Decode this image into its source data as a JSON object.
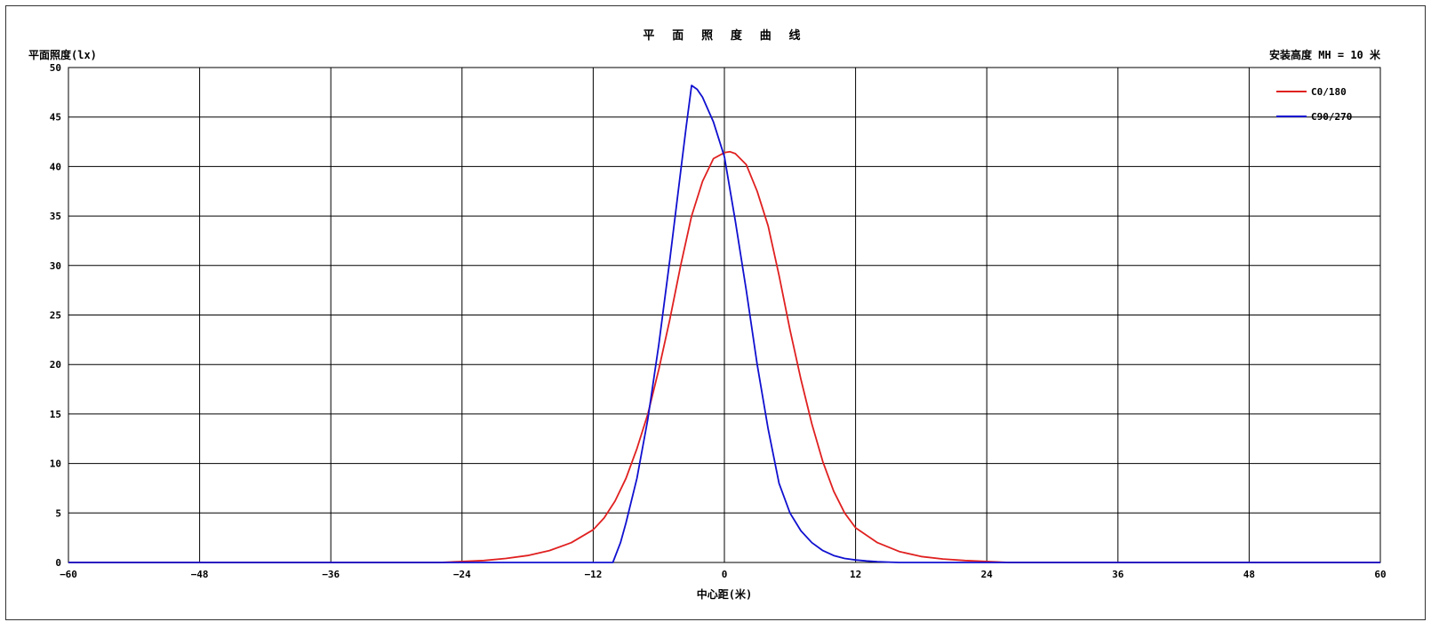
{
  "chart_data": {
    "type": "line",
    "title": "平 面 照 度 曲 线",
    "ylabel": "平面照度(lx)",
    "xlabel": "中心距(米)",
    "annotation": "安装高度 MH = 10 米",
    "xlim": [
      -60,
      60
    ],
    "ylim": [
      0,
      50
    ],
    "xticks": [
      -60,
      -48,
      -36,
      -24,
      -12,
      0,
      12,
      24,
      36,
      48,
      60
    ],
    "yticks": [
      0,
      5,
      10,
      15,
      20,
      25,
      30,
      35,
      40,
      45,
      50
    ],
    "grid": true,
    "legend_position": "top-right",
    "series": [
      {
        "name": "C0/180",
        "color": "#e02020",
        "x": [
          -60,
          -26,
          -24,
          -22,
          -20,
          -18,
          -16,
          -14,
          -12,
          -11,
          -10,
          -9,
          -8,
          -7,
          -6,
          -5,
          -4,
          -3,
          -2,
          -1,
          0,
          0.5,
          1,
          2,
          3,
          4,
          5,
          6,
          7,
          8,
          9,
          10,
          11,
          12,
          14,
          16,
          18,
          20,
          22,
          24,
          26,
          60
        ],
        "y": [
          0,
          0,
          0.1,
          0.2,
          0.4,
          0.7,
          1.2,
          2.0,
          3.3,
          4.5,
          6.2,
          8.5,
          11.5,
          15.0,
          19.5,
          24.5,
          30.0,
          35.0,
          38.5,
          40.8,
          41.4,
          41.5,
          41.3,
          40.2,
          37.5,
          34.0,
          29.0,
          23.5,
          18.5,
          14.0,
          10.2,
          7.2,
          5.0,
          3.5,
          2.0,
          1.1,
          0.6,
          0.35,
          0.2,
          0.1,
          0,
          0
        ]
      },
      {
        "name": "C90/270",
        "color": "#1010d0",
        "x": [
          -60,
          -10.2,
          -9.5,
          -9,
          -8,
          -7,
          -6,
          -5,
          -4,
          -3.5,
          -3,
          -2.5,
          -2,
          -1,
          0,
          1,
          2,
          3,
          4,
          5,
          6,
          7,
          8,
          9,
          10,
          11,
          12,
          13,
          14,
          15,
          16,
          60
        ],
        "y": [
          0,
          0,
          2.0,
          4.0,
          8.5,
          14.5,
          22.0,
          30.5,
          39.5,
          44.0,
          48.2,
          47.8,
          47.0,
          44.5,
          41.0,
          34.5,
          27.5,
          20.0,
          13.5,
          8.0,
          5.0,
          3.2,
          2.0,
          1.2,
          0.7,
          0.4,
          0.25,
          0.15,
          0.08,
          0.04,
          0,
          0
        ]
      }
    ]
  }
}
